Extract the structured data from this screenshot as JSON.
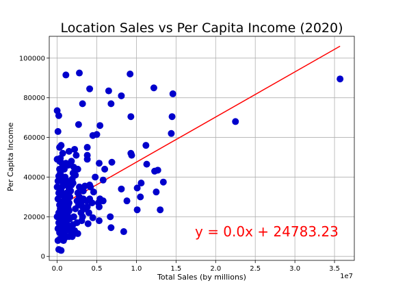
{
  "chart_data": {
    "type": "scatter",
    "title": "Location Sales vs Per Capita Income (2020)",
    "xlabel": "Total Sales (by millions)",
    "ylabel": "Per Capita Income",
    "x_offset_label": "1e7",
    "xlim": [
      -1000000,
      37500000
    ],
    "ylim": [
      -2000,
      111000
    ],
    "x_ticks": [
      0,
      5000000,
      10000000,
      15000000,
      20000000,
      25000000,
      30000000,
      35000000
    ],
    "x_tick_labels": [
      "0.0",
      "0.5",
      "1.0",
      "1.5",
      "2.0",
      "2.5",
      "3.0",
      "3.5"
    ],
    "y_ticks": [
      0,
      20000,
      40000,
      60000,
      80000,
      100000
    ],
    "y_tick_labels": [
      "0",
      "20000",
      "40000",
      "60000",
      "80000",
      "100000"
    ],
    "grid": true,
    "marker_color": "#0000cc",
    "regression": {
      "slope": 0.002276,
      "intercept": 24783.23,
      "x_range": [
        0,
        35700000
      ],
      "color": "#ff0000",
      "equation_text": "y = 0.0x + 24783.23"
    },
    "series": [
      {
        "points": [
          [
            0,
            73500
          ],
          [
            100000,
            63000
          ],
          [
            200000,
            71000
          ],
          [
            0,
            49000
          ],
          [
            300000,
            55000
          ],
          [
            500000,
            56000
          ],
          [
            400000,
            49500
          ],
          [
            600000,
            47000
          ],
          [
            700000,
            45000
          ],
          [
            1100000,
            91500
          ],
          [
            2800000,
            92500
          ],
          [
            3200000,
            77000
          ],
          [
            4100000,
            84500
          ],
          [
            2700000,
            66500
          ],
          [
            5400000,
            66000
          ],
          [
            5000000,
            61500
          ],
          [
            4500000,
            61000
          ],
          [
            6500000,
            83500
          ],
          [
            8100000,
            81000
          ],
          [
            9200000,
            92000
          ],
          [
            9300000,
            70500
          ],
          [
            12200000,
            85000
          ],
          [
            14600000,
            82000
          ],
          [
            14500000,
            70500
          ],
          [
            14400000,
            62000
          ],
          [
            22500000,
            68000
          ],
          [
            35700000,
            89500
          ],
          [
            6800000,
            77000
          ],
          [
            9300000,
            52000
          ],
          [
            9400000,
            51000
          ],
          [
            11200000,
            56000
          ],
          [
            11300000,
            46500
          ],
          [
            12300000,
            43000
          ],
          [
            12700000,
            43500
          ],
          [
            13400000,
            37500
          ],
          [
            10600000,
            37000
          ],
          [
            10100000,
            34500
          ],
          [
            12500000,
            32500
          ],
          [
            8100000,
            34000
          ],
          [
            8800000,
            28000
          ],
          [
            10500000,
            30000
          ],
          [
            10100000,
            23500
          ],
          [
            13000000,
            23500
          ],
          [
            6000000,
            44000
          ],
          [
            5300000,
            47000
          ],
          [
            6900000,
            47500
          ],
          [
            5800000,
            38500
          ],
          [
            4800000,
            40000
          ],
          [
            3800000,
            55000
          ],
          [
            3800000,
            51000
          ],
          [
            3800000,
            49000
          ],
          [
            2200000,
            54000
          ],
          [
            2400000,
            51000
          ],
          [
            1500000,
            53000
          ],
          [
            1800000,
            48000
          ],
          [
            1400000,
            46000
          ],
          [
            4200000,
            35000
          ],
          [
            4100000,
            36000
          ],
          [
            3500000,
            35500
          ],
          [
            2800000,
            35000
          ],
          [
            3300000,
            33000
          ],
          [
            4600000,
            32500
          ],
          [
            5200000,
            27000
          ],
          [
            5400000,
            29000
          ],
          [
            5800000,
            28000
          ],
          [
            3700000,
            28000
          ],
          [
            3200000,
            25000
          ],
          [
            2700000,
            26000
          ],
          [
            5300000,
            25000
          ],
          [
            4000000,
            22000
          ],
          [
            4500000,
            19500
          ],
          [
            3000000,
            22000
          ],
          [
            3100000,
            18000
          ],
          [
            2500000,
            17000
          ],
          [
            2000000,
            16000
          ],
          [
            2200000,
            13000
          ],
          [
            2000000,
            11000
          ],
          [
            2600000,
            11500
          ],
          [
            3200000,
            20000
          ],
          [
            3900000,
            16500
          ],
          [
            5300000,
            18000
          ],
          [
            6700000,
            20000
          ],
          [
            6800000,
            14500
          ],
          [
            8400000,
            12500
          ],
          [
            1200000,
            14000
          ],
          [
            1500000,
            10000
          ],
          [
            200000,
            3500
          ],
          [
            500000,
            3000
          ],
          [
            100000,
            8000
          ],
          [
            300000,
            12000
          ],
          [
            100000,
            14000
          ],
          [
            200000,
            17000
          ],
          [
            0,
            20000
          ],
          [
            200000,
            22000
          ],
          [
            300000,
            26000
          ],
          [
            100000,
            29000
          ],
          [
            200000,
            32000
          ],
          [
            0,
            35000
          ],
          [
            100000,
            38000
          ],
          [
            200000,
            40500
          ],
          [
            300000,
            44000
          ],
          [
            400000,
            42000
          ],
          [
            500000,
            38000
          ],
          [
            600000,
            35000
          ],
          [
            700000,
            31000
          ],
          [
            800000,
            28000
          ],
          [
            900000,
            25000
          ],
          [
            1000000,
            22000
          ],
          [
            600000,
            20000
          ],
          [
            700000,
            17000
          ],
          [
            800000,
            14000
          ],
          [
            900000,
            11000
          ],
          [
            1000000,
            9500
          ],
          [
            1100000,
            13000
          ],
          [
            1200000,
            17000
          ],
          [
            1300000,
            21000
          ],
          [
            1400000,
            24000
          ],
          [
            1500000,
            27000
          ],
          [
            1600000,
            30000
          ],
          [
            1700000,
            33000
          ],
          [
            1800000,
            36000
          ],
          [
            1900000,
            39000
          ],
          [
            2000000,
            42000
          ],
          [
            2100000,
            45000
          ],
          [
            1000000,
            40000
          ],
          [
            1100000,
            36000
          ],
          [
            1200000,
            32000
          ],
          [
            1300000,
            29000
          ],
          [
            1400000,
            26000
          ],
          [
            1500000,
            23000
          ],
          [
            1600000,
            19000
          ],
          [
            1700000,
            15000
          ],
          [
            1800000,
            12000
          ],
          [
            1900000,
            10000
          ],
          [
            2100000,
            20000
          ],
          [
            2300000,
            24000
          ],
          [
            2500000,
            28000
          ],
          [
            2600000,
            32000
          ],
          [
            2800000,
            30000
          ],
          [
            3000000,
            27000
          ],
          [
            3300000,
            29000
          ],
          [
            3500000,
            24000
          ],
          [
            3800000,
            25000
          ],
          [
            4100000,
            29000
          ],
          [
            4400000,
            27000
          ],
          [
            900000,
            44000
          ],
          [
            1100000,
            47000
          ],
          [
            700000,
            52000
          ],
          [
            300000,
            48000
          ],
          [
            400000,
            39000
          ],
          [
            500000,
            33000
          ],
          [
            600000,
            27000
          ],
          [
            400000,
            24000
          ],
          [
            500000,
            18000
          ],
          [
            300000,
            15000
          ],
          [
            400000,
            9000
          ],
          [
            600000,
            11000
          ],
          [
            800000,
            8000
          ],
          [
            1000000,
            16000
          ],
          [
            1200000,
            19500
          ],
          [
            1500000,
            34000
          ],
          [
            2000000,
            37000
          ],
          [
            2300000,
            41000
          ],
          [
            2600000,
            44000
          ],
          [
            900000,
            31000
          ],
          [
            1100000,
            26000
          ],
          [
            1300000,
            38000
          ]
        ]
      }
    ]
  }
}
